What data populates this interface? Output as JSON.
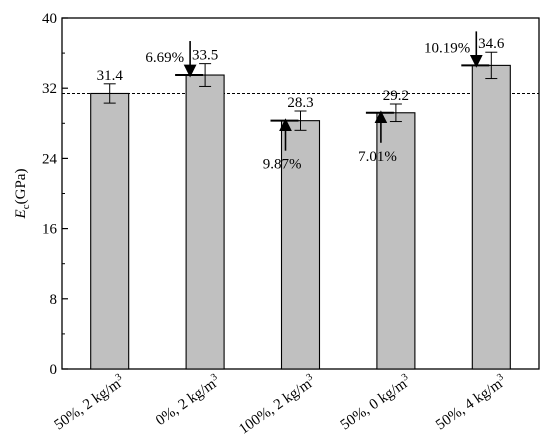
{
  "chart_data": {
    "type": "bar",
    "categories": [
      "50%, 2 kg/m",
      "0%, 2 kg/m",
      "100%, 2 kg/m",
      "50%, 0 kg/m",
      "50%, 4 kg/m"
    ],
    "category_superscript": "3",
    "values": [
      31.4,
      33.5,
      28.3,
      29.2,
      34.6
    ],
    "value_labels": [
      "31.4",
      "33.5",
      "28.3",
      "29.2",
      "34.6"
    ],
    "error": [
      1.1,
      1.3,
      1.1,
      1.0,
      1.5
    ],
    "ylabel": {
      "symbol": "E",
      "subscript": "c",
      "unit": "(GPa)"
    },
    "ylim": [
      0,
      40
    ],
    "yticks": [
      0,
      8,
      16,
      24,
      32,
      40
    ],
    "reference_line": 31.4,
    "annotations": [
      {
        "category_index": 1,
        "text": "6.69%",
        "direction": "down"
      },
      {
        "category_index": 2,
        "text": "9.87%",
        "direction": "up"
      },
      {
        "category_index": 3,
        "text": "7.01%",
        "direction": "up"
      },
      {
        "category_index": 4,
        "text": "10.19%",
        "direction": "down"
      }
    ],
    "bar_color": "#c0c0c0",
    "grid": false
  }
}
